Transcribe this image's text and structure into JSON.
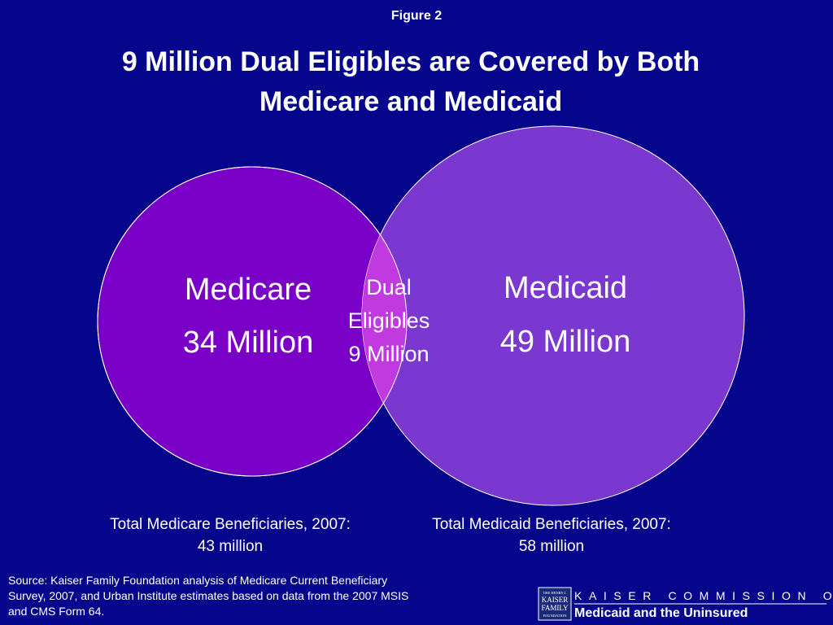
{
  "header": {
    "figure": "Figure 2",
    "title_lines": [
      "9 Million Dual Eligibles are Covered by Both",
      "Medicare and Medicaid"
    ]
  },
  "venn": {
    "left": {
      "name": "Medicare",
      "count": "34 Million"
    },
    "right": {
      "name": "Medicaid",
      "count": "49 Million"
    },
    "overlap": {
      "lines": [
        "Dual",
        "Eligibles",
        "9 Million"
      ]
    }
  },
  "totals": [
    {
      "lines": [
        "Total Medicare Beneficiaries, 2007:",
        "43 million"
      ]
    },
    {
      "lines": [
        "Total Medicaid Beneficiaries, 2007:",
        "58 million"
      ]
    }
  ],
  "source": {
    "lines": [
      "Source: Kaiser Family Foundation analysis of Medicare Current Beneficiary",
      "Survey, 2007, and Urban Institute estimates based on data from the 2007 MSIS",
      "and CMS Form 64."
    ]
  },
  "logo": {
    "box_lines": [
      "THE HENRY J.",
      "KAISER",
      "FAMILY",
      "FOUNDATION"
    ],
    "line1": "KAISER COMMISSION ON",
    "line2": "Medicaid and the Uninsured"
  }
}
